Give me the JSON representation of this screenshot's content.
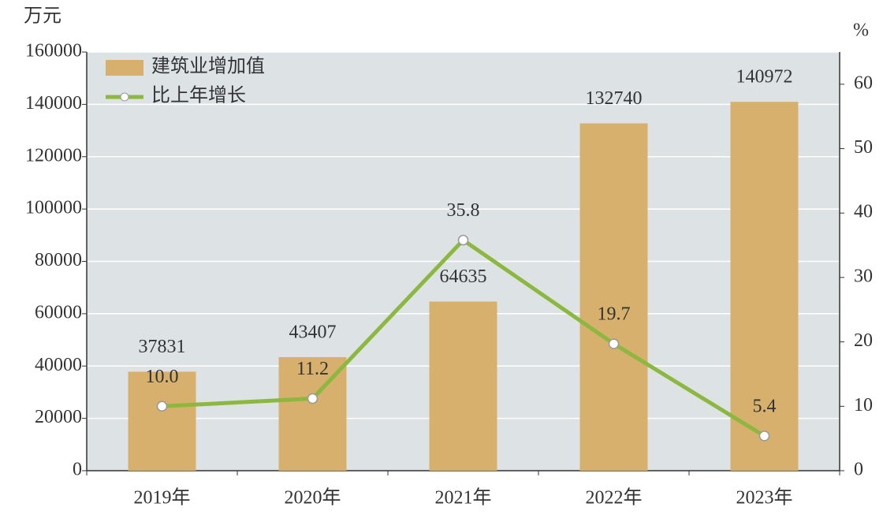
{
  "chart_data": {
    "type": "bar_line",
    "ylabel": "万元",
    "y2label": "%",
    "categories": [
      "2019年",
      "2020年",
      "2021年",
      "2022年",
      "2023年"
    ],
    "series": [
      {
        "name": "建筑业增加值",
        "type": "bar",
        "color": "#d6b06c",
        "values": [
          37831,
          43407,
          64635,
          132740,
          140972
        ]
      },
      {
        "name": "比上年增长",
        "type": "line",
        "axis": "y2",
        "color": "#8cb840",
        "values": [
          10,
          11.2,
          35.8,
          19.7,
          5.4
        ],
        "value_labels": [
          "10.0",
          "11.2",
          "35.8",
          "19.7",
          "5.4"
        ]
      }
    ],
    "ylim": [
      0,
      160000
    ],
    "yticks": [
      0,
      20000,
      40000,
      60000,
      80000,
      100000,
      120000,
      140000,
      160000
    ],
    "y2lim": [
      0,
      65
    ],
    "y2ticks": [
      0,
      10,
      20,
      30,
      40,
      50,
      60
    ],
    "grid": true,
    "legend": "upper-left"
  }
}
